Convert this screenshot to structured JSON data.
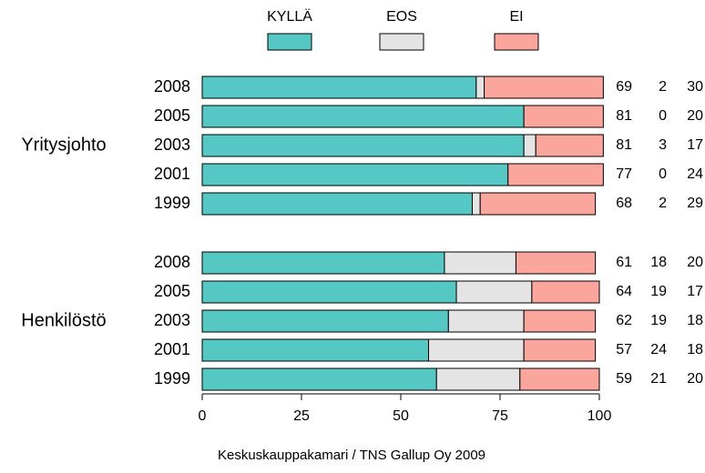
{
  "chart_data": {
    "type": "stacked-barh",
    "source": "Keskuskauppakamari / TNS Gallup Oy 2009",
    "groups": [
      {
        "label": "Yritysjohto"
      },
      {
        "label": "Henkilöstö"
      }
    ],
    "categories": [
      "2008",
      "2005",
      "2003",
      "2001",
      "1999",
      "2008",
      "2005",
      "2003",
      "2001",
      "1999"
    ],
    "series": [
      {
        "name": "KYLLÄ",
        "color": "#55c8c4",
        "values": [
          69,
          81,
          81,
          77,
          68,
          61,
          64,
          62,
          57,
          59
        ]
      },
      {
        "name": "EOS",
        "color": "#e4e4e4",
        "values": [
          2,
          0,
          3,
          0,
          2,
          18,
          19,
          19,
          24,
          21
        ]
      },
      {
        "name": "EI",
        "color": "#fba69d",
        "values": [
          30,
          20,
          17,
          24,
          29,
          20,
          17,
          18,
          18,
          20
        ]
      }
    ],
    "xlim": [
      0,
      100
    ],
    "xticks": [
      0,
      25,
      50,
      75,
      100
    ]
  }
}
